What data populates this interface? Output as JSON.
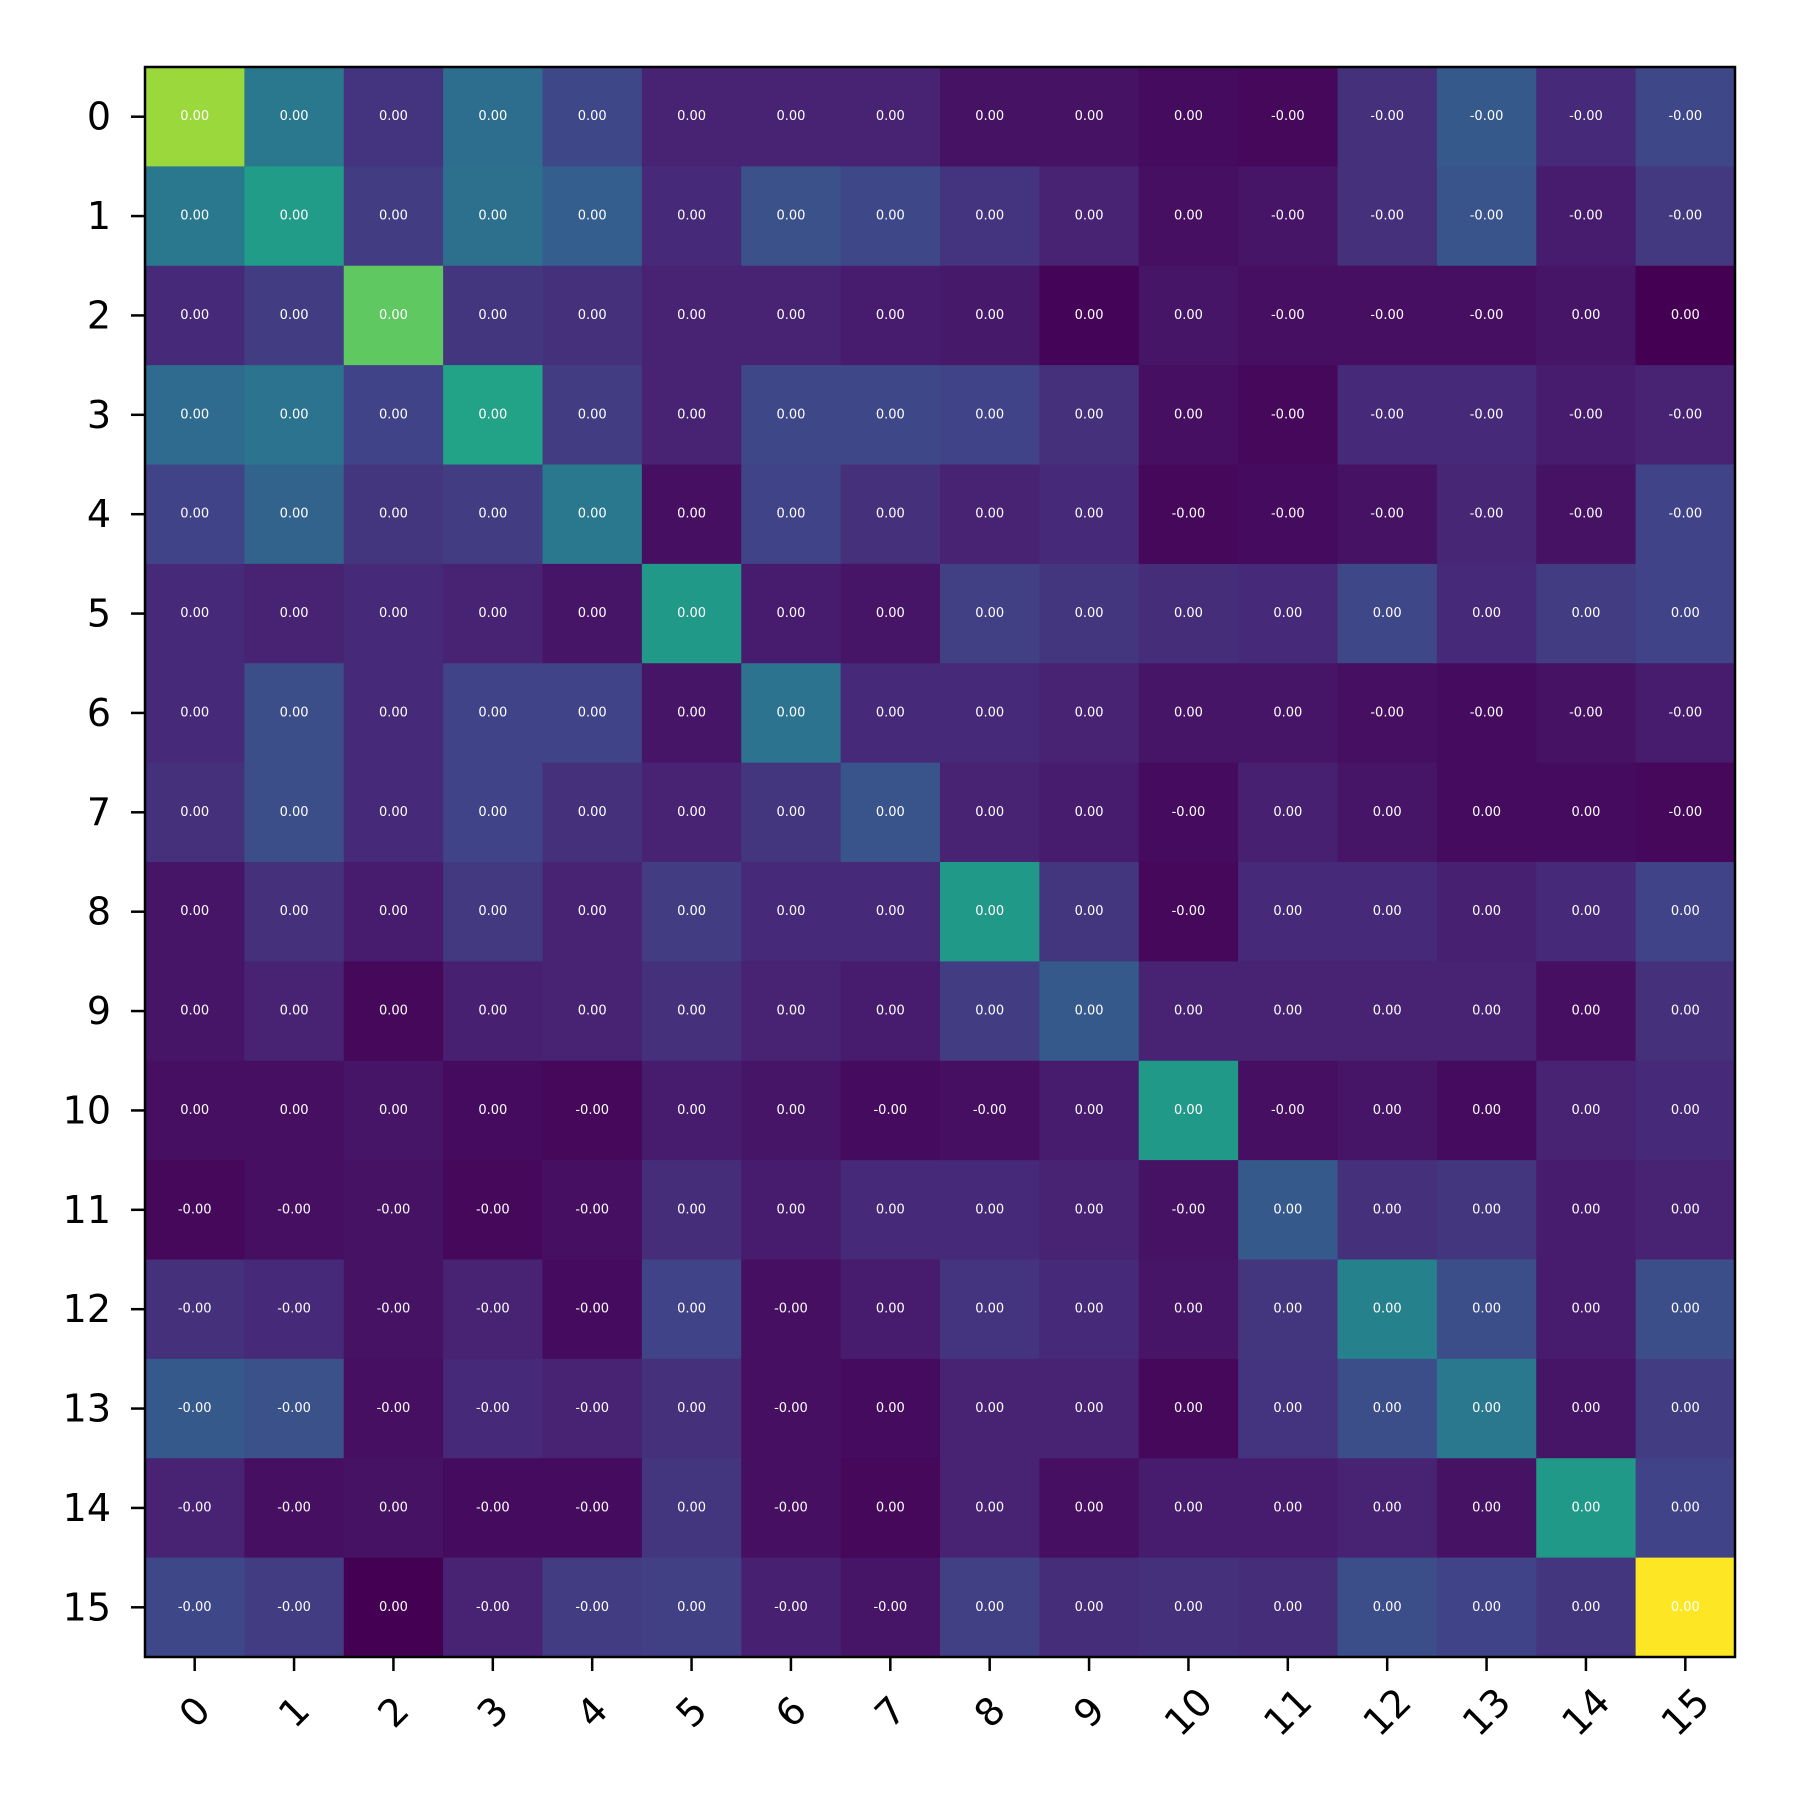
{
  "chart_data": {
    "type": "heatmap",
    "title": "",
    "xlabel": "",
    "ylabel": "",
    "colormap": "viridis",
    "grid": false,
    "legend": "none",
    "x_categories": [
      "0",
      "1",
      "2",
      "3",
      "4",
      "5",
      "6",
      "7",
      "8",
      "9",
      "10",
      "11",
      "12",
      "13",
      "14",
      "15"
    ],
    "y_categories": [
      "0",
      "1",
      "2",
      "3",
      "4",
      "5",
      "6",
      "7",
      "8",
      "9",
      "10",
      "11",
      "12",
      "13",
      "14",
      "15"
    ],
    "labels": [
      [
        "0.00",
        "0.00",
        "0.00",
        "0.00",
        "0.00",
        "0.00",
        "0.00",
        "0.00",
        "0.00",
        "0.00",
        "0.00",
        "-0.00",
        "-0.00",
        "-0.00",
        "-0.00",
        "-0.00"
      ],
      [
        "0.00",
        "0.00",
        "0.00",
        "0.00",
        "0.00",
        "0.00",
        "0.00",
        "0.00",
        "0.00",
        "0.00",
        "0.00",
        "-0.00",
        "-0.00",
        "-0.00",
        "-0.00",
        "-0.00"
      ],
      [
        "0.00",
        "0.00",
        "0.00",
        "0.00",
        "0.00",
        "0.00",
        "0.00",
        "0.00",
        "0.00",
        "0.00",
        "0.00",
        "-0.00",
        "-0.00",
        "-0.00",
        "0.00",
        "0.00"
      ],
      [
        "0.00",
        "0.00",
        "0.00",
        "0.00",
        "0.00",
        "0.00",
        "0.00",
        "0.00",
        "0.00",
        "0.00",
        "0.00",
        "-0.00",
        "-0.00",
        "-0.00",
        "-0.00",
        "-0.00"
      ],
      [
        "0.00",
        "0.00",
        "0.00",
        "0.00",
        "0.00",
        "0.00",
        "0.00",
        "0.00",
        "0.00",
        "0.00",
        "-0.00",
        "-0.00",
        "-0.00",
        "-0.00",
        "-0.00",
        "-0.00"
      ],
      [
        "0.00",
        "0.00",
        "0.00",
        "0.00",
        "0.00",
        "0.00",
        "0.00",
        "0.00",
        "0.00",
        "0.00",
        "0.00",
        "0.00",
        "0.00",
        "0.00",
        "0.00",
        "0.00"
      ],
      [
        "0.00",
        "0.00",
        "0.00",
        "0.00",
        "0.00",
        "0.00",
        "0.00",
        "0.00",
        "0.00",
        "0.00",
        "0.00",
        "0.00",
        "-0.00",
        "-0.00",
        "-0.00",
        "-0.00"
      ],
      [
        "0.00",
        "0.00",
        "0.00",
        "0.00",
        "0.00",
        "0.00",
        "0.00",
        "0.00",
        "0.00",
        "0.00",
        "-0.00",
        "0.00",
        "0.00",
        "0.00",
        "0.00",
        "-0.00"
      ],
      [
        "0.00",
        "0.00",
        "0.00",
        "0.00",
        "0.00",
        "0.00",
        "0.00",
        "0.00",
        "0.00",
        "0.00",
        "-0.00",
        "0.00",
        "0.00",
        "0.00",
        "0.00",
        "0.00"
      ],
      [
        "0.00",
        "0.00",
        "0.00",
        "0.00",
        "0.00",
        "0.00",
        "0.00",
        "0.00",
        "0.00",
        "0.00",
        "0.00",
        "0.00",
        "0.00",
        "0.00",
        "0.00",
        "0.00"
      ],
      [
        "0.00",
        "0.00",
        "0.00",
        "0.00",
        "-0.00",
        "0.00",
        "0.00",
        "-0.00",
        "-0.00",
        "0.00",
        "0.00",
        "-0.00",
        "0.00",
        "0.00",
        "0.00",
        "0.00"
      ],
      [
        "-0.00",
        "-0.00",
        "-0.00",
        "-0.00",
        "-0.00",
        "0.00",
        "0.00",
        "0.00",
        "0.00",
        "0.00",
        "-0.00",
        "0.00",
        "0.00",
        "0.00",
        "0.00",
        "0.00"
      ],
      [
        "-0.00",
        "-0.00",
        "-0.00",
        "-0.00",
        "-0.00",
        "0.00",
        "-0.00",
        "0.00",
        "0.00",
        "0.00",
        "0.00",
        "0.00",
        "0.00",
        "0.00",
        "0.00",
        "0.00"
      ],
      [
        "-0.00",
        "-0.00",
        "-0.00",
        "-0.00",
        "-0.00",
        "0.00",
        "-0.00",
        "0.00",
        "0.00",
        "0.00",
        "0.00",
        "0.00",
        "0.00",
        "0.00",
        "0.00",
        "0.00"
      ],
      [
        "-0.00",
        "-0.00",
        "0.00",
        "-0.00",
        "-0.00",
        "0.00",
        "-0.00",
        "0.00",
        "0.00",
        "0.00",
        "0.00",
        "0.00",
        "0.00",
        "0.00",
        "0.00",
        "0.00"
      ],
      [
        "-0.00",
        "-0.00",
        "0.00",
        "-0.00",
        "-0.00",
        "0.00",
        "-0.00",
        "-0.00",
        "0.00",
        "0.00",
        "0.00",
        "0.00",
        "0.00",
        "0.00",
        "0.00",
        "0.00"
      ]
    ],
    "intensity": [
      [
        0.85,
        0.4,
        0.15,
        0.36,
        0.22,
        0.1,
        0.1,
        0.1,
        0.05,
        0.05,
        0.03,
        0.02,
        0.14,
        0.28,
        0.12,
        0.22
      ],
      [
        0.4,
        0.55,
        0.18,
        0.37,
        0.3,
        0.12,
        0.25,
        0.22,
        0.15,
        0.1,
        0.04,
        0.06,
        0.14,
        0.26,
        0.08,
        0.17
      ],
      [
        0.12,
        0.18,
        0.75,
        0.16,
        0.14,
        0.1,
        0.1,
        0.08,
        0.07,
        0.01,
        0.06,
        0.04,
        0.04,
        0.04,
        0.06,
        0.0
      ],
      [
        0.35,
        0.38,
        0.2,
        0.58,
        0.18,
        0.1,
        0.22,
        0.22,
        0.2,
        0.14,
        0.04,
        0.02,
        0.12,
        0.12,
        0.08,
        0.1
      ],
      [
        0.2,
        0.32,
        0.16,
        0.18,
        0.4,
        0.04,
        0.2,
        0.14,
        0.1,
        0.12,
        0.02,
        0.03,
        0.05,
        0.11,
        0.05,
        0.2
      ],
      [
        0.12,
        0.1,
        0.12,
        0.1,
        0.06,
        0.54,
        0.08,
        0.06,
        0.19,
        0.16,
        0.13,
        0.12,
        0.22,
        0.12,
        0.18,
        0.2
      ],
      [
        0.12,
        0.24,
        0.12,
        0.2,
        0.2,
        0.06,
        0.38,
        0.12,
        0.12,
        0.1,
        0.06,
        0.06,
        0.04,
        0.03,
        0.05,
        0.08
      ],
      [
        0.14,
        0.24,
        0.12,
        0.2,
        0.14,
        0.1,
        0.16,
        0.26,
        0.1,
        0.08,
        0.03,
        0.09,
        0.06,
        0.03,
        0.03,
        0.02
      ],
      [
        0.06,
        0.14,
        0.08,
        0.17,
        0.1,
        0.18,
        0.12,
        0.12,
        0.54,
        0.16,
        0.02,
        0.12,
        0.12,
        0.09,
        0.12,
        0.2
      ],
      [
        0.06,
        0.1,
        0.02,
        0.09,
        0.1,
        0.14,
        0.1,
        0.08,
        0.18,
        0.28,
        0.1,
        0.1,
        0.1,
        0.1,
        0.04,
        0.14
      ],
      [
        0.04,
        0.04,
        0.06,
        0.03,
        0.02,
        0.08,
        0.06,
        0.03,
        0.04,
        0.08,
        0.54,
        0.04,
        0.06,
        0.03,
        0.1,
        0.12
      ],
      [
        0.02,
        0.04,
        0.05,
        0.02,
        0.04,
        0.13,
        0.08,
        0.12,
        0.12,
        0.1,
        0.05,
        0.28,
        0.14,
        0.16,
        0.08,
        0.1
      ],
      [
        0.14,
        0.12,
        0.05,
        0.1,
        0.03,
        0.2,
        0.04,
        0.08,
        0.15,
        0.12,
        0.06,
        0.16,
        0.44,
        0.24,
        0.08,
        0.24
      ],
      [
        0.28,
        0.25,
        0.04,
        0.12,
        0.1,
        0.14,
        0.04,
        0.03,
        0.1,
        0.1,
        0.02,
        0.15,
        0.24,
        0.4,
        0.06,
        0.18
      ],
      [
        0.1,
        0.04,
        0.05,
        0.03,
        0.03,
        0.16,
        0.04,
        0.02,
        0.1,
        0.04,
        0.08,
        0.08,
        0.1,
        0.05,
        0.54,
        0.2
      ],
      [
        0.22,
        0.18,
        0.0,
        0.1,
        0.18,
        0.19,
        0.09,
        0.06,
        0.19,
        0.13,
        0.14,
        0.13,
        0.24,
        0.2,
        0.16,
        1.0
      ]
    ]
  }
}
